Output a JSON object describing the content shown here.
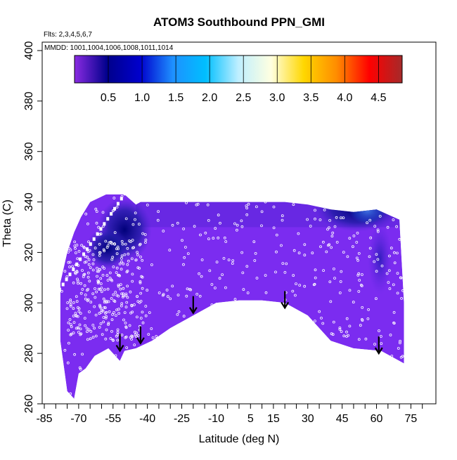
{
  "chart_data": {
    "type": "heatmap",
    "title": "ATOM3 Southbound PPN_GMI",
    "annotations": {
      "flights": "Flts: 2,3,4,5,6,7",
      "dates": "MMDD: 1001,1004,1006,1008,1011,1014"
    },
    "xlabel": "Latitude (deg N)",
    "ylabel": "Theta (C)",
    "xlim": [
      -85,
      85
    ],
    "ylim": [
      260,
      400
    ],
    "x_ticks": [
      -85,
      -70,
      -55,
      -40,
      -25,
      -10,
      5,
      15,
      30,
      45,
      60,
      75
    ],
    "x_tick_labels": [
      "-85",
      "-70",
      "-55",
      "-40",
      "-25",
      "-10",
      "5",
      "15",
      "30",
      "45",
      "60",
      "75"
    ],
    "y_ticks": [
      260,
      280,
      300,
      320,
      340,
      360,
      380,
      400
    ],
    "y_tick_labels": [
      "260",
      "280",
      "300",
      "320",
      "340",
      "360",
      "380",
      "400"
    ],
    "colorbar": {
      "range": [
        0,
        4.85
      ],
      "ticks": [
        0.5,
        1.0,
        1.5,
        2.0,
        2.5,
        3.0,
        3.5,
        4.0,
        4.5
      ],
      "tick_labels": [
        "0.5",
        "1.0",
        "1.5",
        "2.0",
        "2.5",
        "3.0",
        "3.5",
        "4.0",
        "4.5"
      ],
      "colors": [
        "#8a2be2",
        "#00008b",
        "#0000cd",
        "#1e90ff",
        "#00bfff",
        "#bfefff",
        "#ffffe0",
        "#ffd700",
        "#ff8c00",
        "#ff0000",
        "#a52a2a"
      ]
    },
    "field": {
      "background_value": 0.1,
      "background_color": "#7b2cf0",
      "domain_upper_boundary": [
        [
          -78,
          308
        ],
        [
          -75,
          320
        ],
        [
          -72,
          328
        ],
        [
          -69,
          334
        ],
        [
          -65,
          340
        ],
        [
          -58,
          343
        ],
        [
          -50,
          343
        ],
        [
          -45,
          339
        ],
        [
          -43,
          340
        ],
        [
          -40,
          340
        ],
        [
          0,
          340
        ],
        [
          20,
          340
        ],
        [
          30,
          339
        ],
        [
          40,
          337
        ],
        [
          50,
          336
        ],
        [
          60,
          337
        ],
        [
          70,
          333
        ],
        [
          72,
          300
        ]
      ],
      "domain_lower_boundary": [
        [
          72,
          276
        ],
        [
          62,
          281
        ],
        [
          50,
          282
        ],
        [
          40,
          285
        ],
        [
          30,
          295
        ],
        [
          20,
          300
        ],
        [
          10,
          301
        ],
        [
          0,
          301
        ],
        [
          -10,
          300
        ],
        [
          -20,
          295
        ],
        [
          -30,
          290
        ],
        [
          -38,
          285
        ],
        [
          -45,
          282
        ],
        [
          -50,
          281
        ],
        [
          -52,
          277
        ],
        [
          -57,
          282
        ],
        [
          -63,
          279
        ],
        [
          -67,
          274
        ],
        [
          -70,
          272
        ],
        [
          -72,
          262
        ],
        [
          -75,
          265
        ],
        [
          -78,
          285
        ]
      ],
      "features": [
        {
          "lon_range": [
            -60,
            -40
          ],
          "theta_range": [
            318,
            340
          ],
          "value": 0.3
        },
        {
          "lon_range": [
            -65,
            -50
          ],
          "theta_range": [
            315,
            328
          ],
          "value": 0.2
        },
        {
          "lon_range": [
            35,
            68
          ],
          "theta_range": [
            330,
            344
          ],
          "value": 0.35
        },
        {
          "lon_range": [
            50,
            62
          ],
          "theta_range": [
            333,
            340
          ],
          "value": 0.9
        },
        {
          "lon_range": [
            58,
            65
          ],
          "theta_range": [
            305,
            330
          ],
          "value": 0.3
        }
      ],
      "sample_point_count": 600
    },
    "markers": {
      "type": "down-arrow",
      "latitudes": [
        -52,
        -43,
        -20,
        20,
        61
      ],
      "theta": [
        281,
        284,
        296,
        298,
        280
      ]
    }
  }
}
